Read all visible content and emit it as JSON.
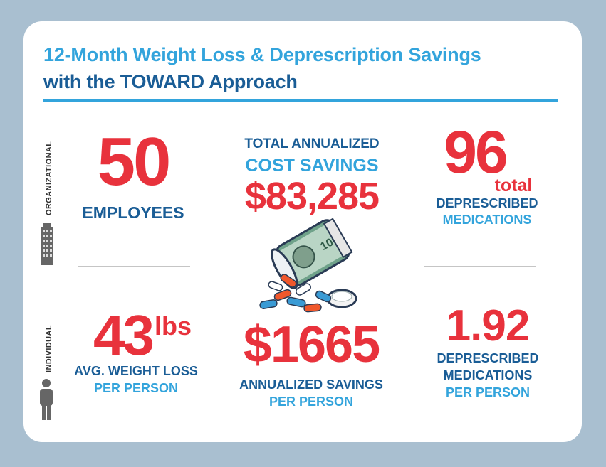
{
  "title": {
    "line1": "12-Month Weight Loss & Deprescription Savings",
    "line2": "with the TOWARD Approach"
  },
  "side_labels": {
    "organizational": "ORGANIZATIONAL",
    "individual": "INDIVIDUAL"
  },
  "organizational": {
    "employees_value": "50",
    "employees_label": "EMPLOYEES",
    "savings_label1": "TOTAL ANNUALIZED",
    "savings_label2": "COST SAVINGS",
    "savings_value": "$83,285",
    "meds_value": "96",
    "meds_total": "total",
    "meds_label1": "DEPRESCRIBED",
    "meds_label2": "MEDICATIONS"
  },
  "individual": {
    "weight_value": "43",
    "weight_unit": "lbs",
    "weight_label1": "AVG. WEIGHT LOSS",
    "weight_label2": "PER PERSON",
    "savings_value": "$1665",
    "savings_label1": "ANNUALIZED SAVINGS",
    "savings_label2": "PER PERSON",
    "meds_value": "1.92",
    "meds_label1": "DEPRESCRIBED",
    "meds_label2": "MEDICATIONS",
    "meds_label3": "PER PERSON"
  },
  "icons": {
    "building": "building-icon",
    "person": "person-icon",
    "pill_bottle": "pill-bottle-money-icon"
  },
  "colors": {
    "background": "#a9bfd0",
    "red": "#e8323c",
    "dark_blue": "#1a5d96",
    "light_blue": "#33a4dc"
  }
}
